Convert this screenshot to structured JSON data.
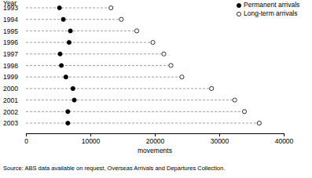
{
  "chart_data": {
    "type": "dot",
    "orientation": "horizontal",
    "ylabel": "Year",
    "xlabel": "movements",
    "annotations": [
      "Source: ABS data available on request, Overseas Arrivals and Departures Collection."
    ],
    "categories": [
      "1993",
      "1994",
      "1995",
      "1996",
      "1997",
      "1998",
      "1999",
      "2000",
      "2001",
      "2002",
      "2003"
    ],
    "series": [
      {
        "name": "Permanent arrivals",
        "color": "#000000",
        "marker": "filled",
        "values": [
          5200,
          5800,
          6900,
          6700,
          5300,
          5500,
          6200,
          7300,
          7500,
          6500,
          6500
        ]
      },
      {
        "name": "Long-term arrivals",
        "color": "#000000",
        "marker": "open",
        "values": [
          13200,
          14800,
          17200,
          19700,
          21400,
          22500,
          24200,
          28800,
          32400,
          33900,
          36200
        ]
      }
    ],
    "xlim": [
      0,
      40000
    ],
    "xticks": [
      0,
      10000,
      20000,
      30000,
      40000
    ],
    "legend": "top-right",
    "grid": false
  }
}
